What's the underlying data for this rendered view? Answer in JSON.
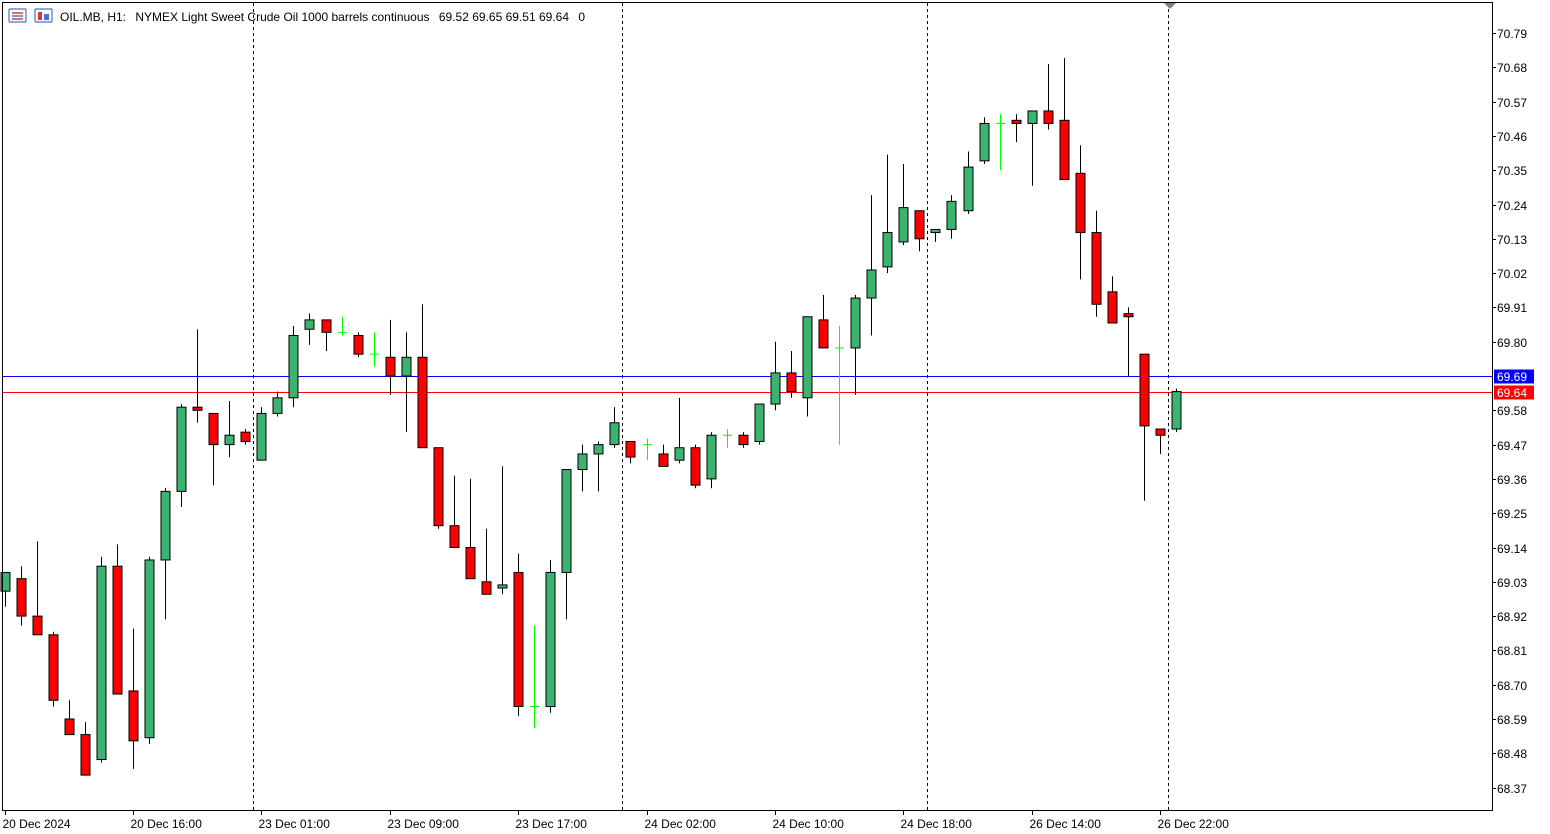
{
  "header": {
    "symbol": "OIL.MB, H1:",
    "description": "NYMEX Light Sweet Crude Oil 1000 barrels continuous",
    "ohlc": "69.52 69.65 69.51 69.64",
    "volume": "0",
    "icons": [
      "menu-icon",
      "chart-window-icon"
    ]
  },
  "colors": {
    "bull_body": "#3cb371",
    "bear_body": "#ff0000",
    "doji": "#00ff00",
    "wick": "#000000",
    "bid_line": "#ff0000",
    "ask_line": "#0000ff",
    "period_separator": "#000000",
    "background": "#ffffff"
  },
  "price_labels": [
    {
      "name": "ask",
      "value": "69.69",
      "price": 69.69,
      "color": "#0000ff"
    },
    {
      "name": "bid",
      "value": "69.64",
      "price": 69.64,
      "color": "#ff0000"
    }
  ],
  "chart_data": {
    "type": "candlestick",
    "symbol": "OIL.MB",
    "timeframe": "H1",
    "y_ticks": [
      "70.79",
      "70.68",
      "70.57",
      "70.46",
      "70.35",
      "70.24",
      "70.13",
      "70.02",
      "69.91",
      "69.80",
      "69.58",
      "69.47",
      "69.36",
      "69.25",
      "69.14",
      "69.03",
      "68.92",
      "68.81",
      "68.70",
      "68.59",
      "68.48",
      "68.37"
    ],
    "x_ticks": [
      "20 Dec 2024",
      "20 Dec 16:00",
      "23 Dec 01:00",
      "23 Dec 09:00",
      "23 Dec 17:00",
      "24 Dec 02:00",
      "24 Dec 10:00",
      "24 Dec 18:00",
      "26 Dec 14:00",
      "26 Dec 22:00"
    ],
    "separator_after_bar": [
      15,
      38,
      57,
      72
    ],
    "candles": [
      [
        69.0,
        69.05,
        68.95,
        69.06
      ],
      [
        69.04,
        69.08,
        68.89,
        68.92
      ],
      [
        68.92,
        69.16,
        68.86,
        68.86
      ],
      [
        68.86,
        68.87,
        68.63,
        68.65
      ],
      [
        68.59,
        68.65,
        68.56,
        68.54
      ],
      [
        68.54,
        68.58,
        68.43,
        68.41
      ],
      [
        68.46,
        69.11,
        68.45,
        69.08
      ],
      [
        69.08,
        69.15,
        68.67,
        68.67
      ],
      [
        68.68,
        68.88,
        68.43,
        68.52
      ],
      [
        68.53,
        69.11,
        68.51,
        69.1
      ],
      [
        69.1,
        69.33,
        68.91,
        69.32
      ],
      [
        69.32,
        69.6,
        69.27,
        69.59
      ],
      [
        69.59,
        69.84,
        69.54,
        69.58
      ],
      [
        69.57,
        69.57,
        69.34,
        69.47
      ],
      [
        69.47,
        69.61,
        69.43,
        69.5
      ],
      [
        69.51,
        69.52,
        69.47,
        69.48
      ],
      [
        69.42,
        69.59,
        69.42,
        69.57
      ],
      [
        69.57,
        69.64,
        69.56,
        69.62
      ],
      [
        69.62,
        69.85,
        69.59,
        69.82
      ],
      [
        69.84,
        69.89,
        69.79,
        69.87
      ],
      [
        69.87,
        69.87,
        69.77,
        69.83
      ],
      [
        69.83,
        69.88,
        69.82,
        69.83
      ],
      [
        69.82,
        69.83,
        69.75,
        69.76
      ],
      [
        69.76,
        69.83,
        69.72,
        69.76
      ],
      [
        69.75,
        69.87,
        69.63,
        69.69
      ],
      [
        69.69,
        69.83,
        69.51,
        69.75
      ],
      [
        69.75,
        69.92,
        69.46,
        69.46
      ],
      [
        69.46,
        69.46,
        69.2,
        69.21
      ],
      [
        69.21,
        69.37,
        69.16,
        69.14
      ],
      [
        69.14,
        69.36,
        69.04,
        69.04
      ],
      [
        69.03,
        69.2,
        69.0,
        68.99
      ],
      [
        69.01,
        69.4,
        68.99,
        69.02
      ],
      [
        69.06,
        69.12,
        68.6,
        68.63
      ],
      [
        68.63,
        68.89,
        68.56,
        68.63
      ],
      [
        68.63,
        69.1,
        68.61,
        69.06
      ],
      [
        69.06,
        69.39,
        68.91,
        69.39
      ],
      [
        69.39,
        69.47,
        69.32,
        69.44
      ],
      [
        69.44,
        69.48,
        69.32,
        69.47
      ],
      [
        69.47,
        69.59,
        69.46,
        69.54
      ],
      [
        69.48,
        69.48,
        69.41,
        69.43
      ],
      [
        69.47,
        69.49,
        69.42,
        69.47
      ],
      [
        69.44,
        69.47,
        69.41,
        69.4
      ],
      [
        69.42,
        69.62,
        69.41,
        69.46
      ],
      [
        69.46,
        69.47,
        69.33,
        69.34
      ],
      [
        69.36,
        69.51,
        69.33,
        69.5
      ],
      [
        69.5,
        69.52,
        69.46,
        69.5
      ],
      [
        69.5,
        69.51,
        69.46,
        69.47
      ],
      [
        69.48,
        69.59,
        69.47,
        69.6
      ],
      [
        69.6,
        69.8,
        69.58,
        69.7
      ],
      [
        69.7,
        69.77,
        69.62,
        69.64
      ],
      [
        69.62,
        69.88,
        69.56,
        69.88
      ],
      [
        69.87,
        69.95,
        69.78,
        69.78
      ],
      [
        69.78,
        69.85,
        69.47,
        69.78
      ],
      [
        69.78,
        69.95,
        69.63,
        69.94
      ],
      [
        69.94,
        70.27,
        69.82,
        70.03
      ],
      [
        70.04,
        70.4,
        70.02,
        70.15
      ],
      [
        70.12,
        70.37,
        70.11,
        70.23
      ],
      [
        70.22,
        70.22,
        70.09,
        70.13
      ],
      [
        70.15,
        70.16,
        70.12,
        70.16
      ],
      [
        70.16,
        70.27,
        70.13,
        70.25
      ],
      [
        70.22,
        70.41,
        70.21,
        70.36
      ],
      [
        70.38,
        70.52,
        70.37,
        70.5
      ],
      [
        70.5,
        70.53,
        70.35,
        70.5
      ],
      [
        70.51,
        70.53,
        70.44,
        70.5
      ],
      [
        70.5,
        70.54,
        70.3,
        70.54
      ],
      [
        70.54,
        70.69,
        70.48,
        70.5
      ],
      [
        70.51,
        70.71,
        70.33,
        70.32
      ],
      [
        70.34,
        70.43,
        70.0,
        70.15
      ],
      [
        70.15,
        70.22,
        69.88,
        69.92
      ],
      [
        69.96,
        70.01,
        69.86,
        69.86
      ],
      [
        69.89,
        69.91,
        69.69,
        69.88
      ],
      [
        69.76,
        69.76,
        69.29,
        69.53
      ],
      [
        69.52,
        69.52,
        69.44,
        69.5
      ],
      [
        69.52,
        69.65,
        69.51,
        69.64
      ]
    ]
  }
}
